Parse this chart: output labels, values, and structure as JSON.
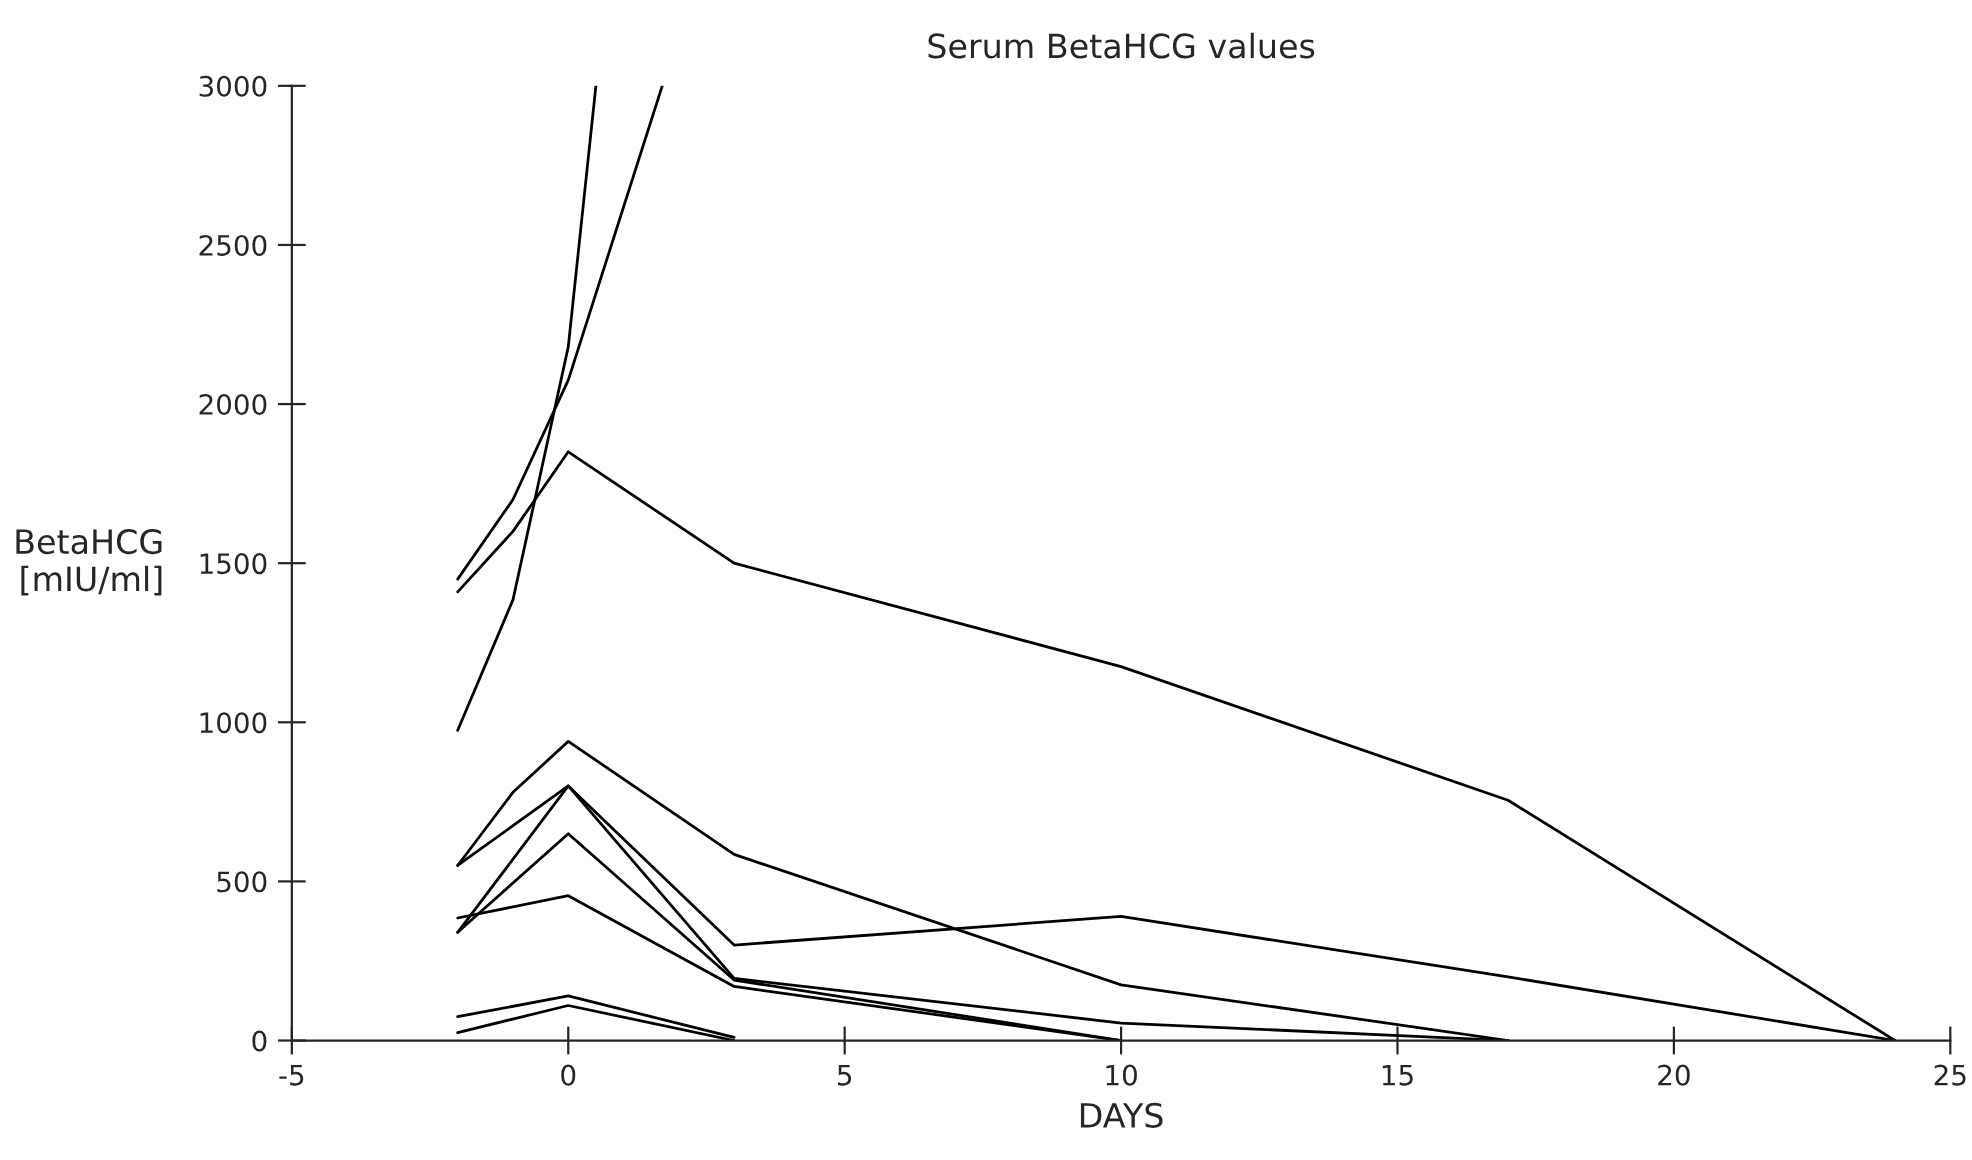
{
  "chart_data": {
    "type": "line",
    "title": "Serum BetaHCG values",
    "xlabel": "DAYS",
    "ylabel": "BetaHCG\n[mIU/ml]",
    "xlim": [
      -5,
      25
    ],
    "xticks": [
      -5,
      0,
      5,
      10,
      15,
      20,
      25
    ],
    "ylim": [
      0,
      3000
    ],
    "yticks": [
      0,
      500,
      1000,
      1500,
      2000,
      2500,
      3000
    ],
    "grid": false,
    "legend": false,
    "marker": "none",
    "line_style": "solid",
    "series": [
      {
        "color": "#000000",
        "x": [
          -2,
          -1,
          0,
          0.5
        ],
        "values": [
          975,
          1385,
          2180,
          3000
        ]
      },
      {
        "color": "#000000",
        "x": [
          -2,
          -1,
          0,
          1.7
        ],
        "values": [
          1450,
          1700,
          2075,
          3000
        ]
      },
      {
        "color": "#000000",
        "x": [
          -2,
          -1,
          0,
          3,
          10,
          17,
          24
        ],
        "values": [
          1410,
          1600,
          1850,
          1500,
          1175,
          755,
          0
        ]
      },
      {
        "color": "#000000",
        "x": [
          -2,
          -1,
          0,
          3,
          10,
          17
        ],
        "values": [
          550,
          780,
          940,
          585,
          175,
          0
        ]
      },
      {
        "color": "#000000",
        "x": [
          -2,
          0,
          3,
          10,
          17,
          24
        ],
        "values": [
          550,
          800,
          300,
          390,
          200,
          0
        ]
      },
      {
        "color": "#000000",
        "x": [
          -2,
          0,
          3,
          10,
          17
        ],
        "values": [
          340,
          800,
          195,
          55,
          0
        ]
      },
      {
        "color": "#000000",
        "x": [
          -2,
          0,
          3,
          10
        ],
        "values": [
          340,
          650,
          190,
          0
        ]
      },
      {
        "color": "#000000",
        "x": [
          -2,
          0,
          3,
          10
        ],
        "values": [
          385,
          455,
          170,
          0
        ]
      },
      {
        "color": "#000000",
        "x": [
          -2,
          0,
          3
        ],
        "values": [
          75,
          140,
          10
        ]
      },
      {
        "color": "#000000",
        "x": [
          -2,
          0,
          3
        ],
        "values": [
          25,
          110,
          0
        ]
      }
    ]
  }
}
